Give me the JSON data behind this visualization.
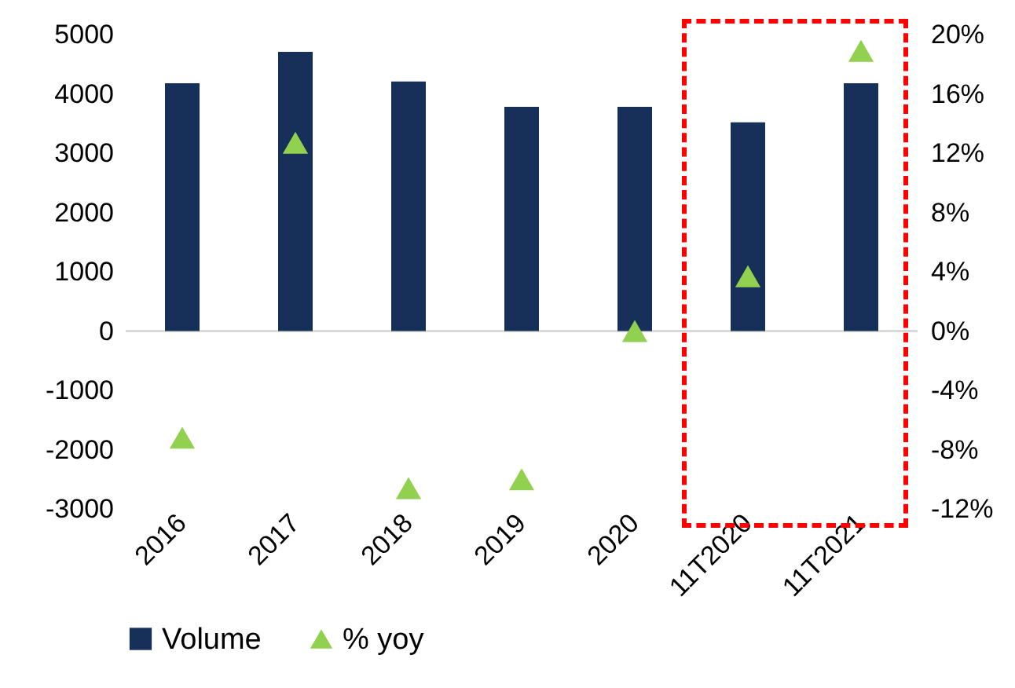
{
  "chart_data": {
    "type": "bar",
    "categories": [
      "2016",
      "2017",
      "2018",
      "2019",
      "2020",
      "11T2020",
      "11T2021"
    ],
    "series": [
      {
        "name": "Volume",
        "color": "#17305a",
        "values": [
          4180,
          4710,
          4210,
          3780,
          3780,
          3520,
          4180
        ]
      },
      {
        "name": "% yoy",
        "type": "scatter",
        "axis": "y2",
        "marker": "triangle",
        "color": "#92d050",
        "values": [
          -7.2,
          12.7,
          -10.6,
          -10.0,
          0.0,
          3.7,
          18.9
        ]
      }
    ],
    "ylim": [
      -3000,
      5000
    ],
    "yticks": [
      -3000,
      -2000,
      -1000,
      0,
      1000,
      2000,
      3000,
      4000,
      5000
    ],
    "y2lim": [
      -12,
      20
    ],
    "y2ticks": [
      {
        "value": -12,
        "label": "-12%"
      },
      {
        "value": -8,
        "label": "-8%"
      },
      {
        "value": -4,
        "label": "-4%"
      },
      {
        "value": 0,
        "label": "0%"
      },
      {
        "value": 4,
        "label": "4%"
      },
      {
        "value": 8,
        "label": "8%"
      },
      {
        "value": 12,
        "label": "12%"
      },
      {
        "value": 16,
        "label": "16%"
      },
      {
        "value": 20,
        "label": "20%"
      }
    ],
    "ref_lines": [
      {
        "axis": "y",
        "value": 0,
        "color": "#d9d9d9"
      }
    ],
    "grid": false,
    "legend": "bottom"
  }
}
